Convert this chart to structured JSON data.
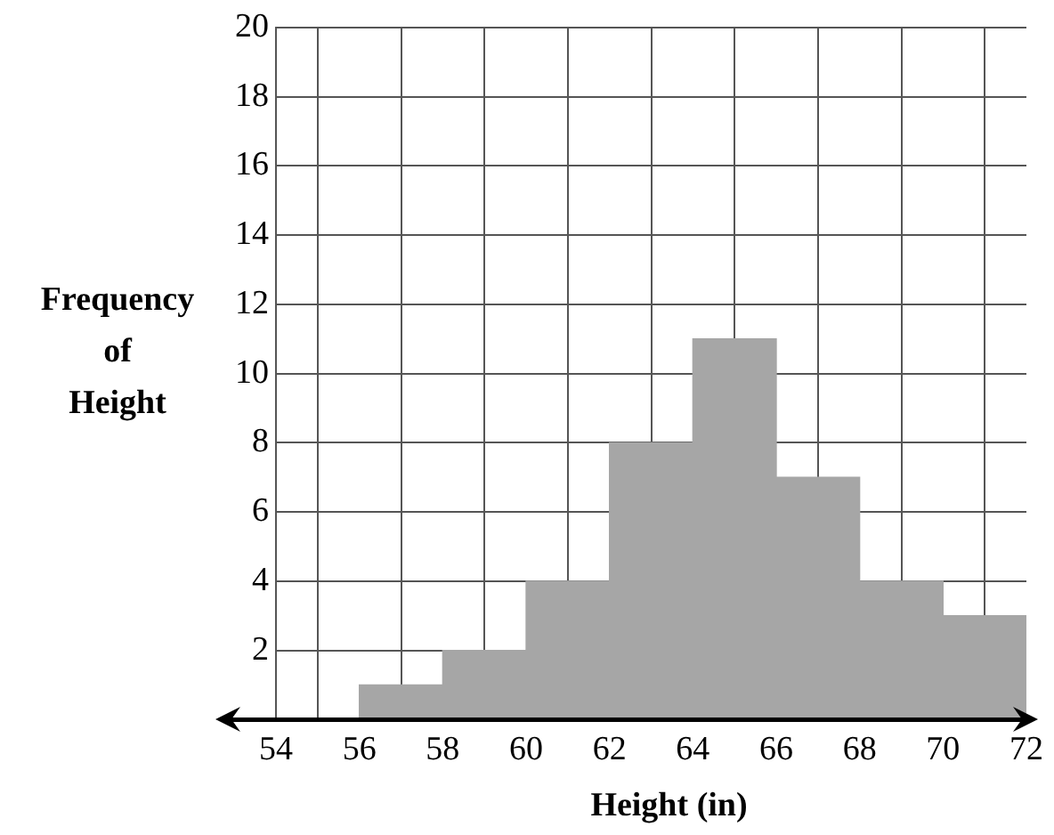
{
  "chart_data": {
    "type": "histogram",
    "xlabel": "Height (in)",
    "ylabel": "Frequency\nof\nHeight",
    "bins": [
      54,
      56,
      58,
      60,
      62,
      64,
      66,
      68,
      70,
      72
    ],
    "values": [
      0,
      1,
      2,
      4,
      8,
      11,
      7,
      4,
      3
    ],
    "color": "#a6a6a6",
    "xlim": [
      54,
      72
    ],
    "xticks": [
      54,
      56,
      58,
      60,
      62,
      64,
      66,
      68,
      70,
      72
    ],
    "ylim": [
      0,
      20
    ],
    "yticks": [
      {
        "value": 0,
        "label": null
      },
      2,
      4,
      6,
      8,
      10,
      12,
      14,
      16,
      18,
      20
    ],
    "grid": true,
    "legend": false
  }
}
